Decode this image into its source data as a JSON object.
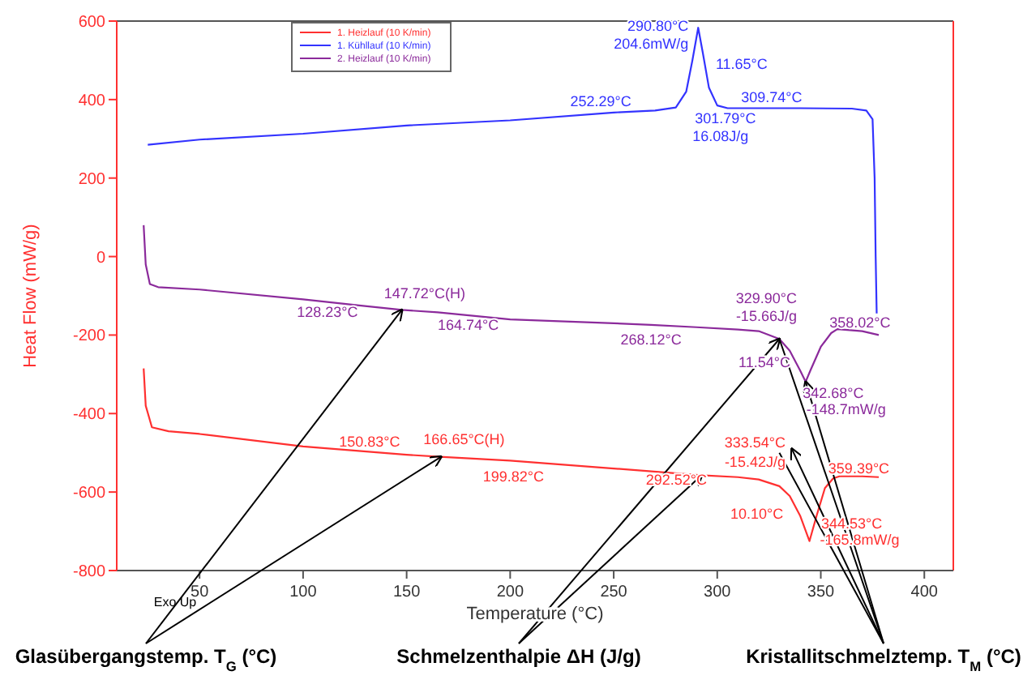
{
  "chart_data": {
    "type": "line",
    "xlabel": "Temperature (°C)",
    "ylabel": "Heat Flow (mW/g)",
    "xlim": [
      10,
      414
    ],
    "ylim": [
      -800,
      600
    ],
    "xticks": [
      50,
      100,
      150,
      200,
      250,
      300,
      350,
      400
    ],
    "yticks": [
      -800,
      -600,
      -400,
      -200,
      0,
      200,
      400,
      600
    ],
    "grid": false,
    "legend": "top",
    "line_style": "solid",
    "series": [
      {
        "name": "1. Heizlauf (10 K/min)",
        "color": "#ff3030",
        "x": [
          23,
          24,
          27,
          35,
          50,
          100,
          150,
          166,
          200,
          250,
          292,
          310,
          320,
          330,
          335,
          340,
          344.53,
          348,
          352,
          356,
          359,
          370,
          378
        ],
        "values": [
          -285,
          -380,
          -435,
          -445,
          -452,
          -484,
          -505,
          -510,
          -520,
          -540,
          -557,
          -562,
          -568,
          -585,
          -610,
          -660,
          -725,
          -660,
          -590,
          -565,
          -560,
          -560,
          -562
        ]
      },
      {
        "name": "1. Kühllauf (10 K/min)",
        "color": "#3333ff",
        "x": [
          25,
          50,
          100,
          150,
          200,
          250,
          270,
          280,
          285,
          288,
          290.8,
          293,
          296,
          300,
          305,
          310,
          340,
          365,
          372,
          375,
          376,
          376.5,
          377
        ],
        "values": [
          285,
          298,
          313,
          334,
          347,
          367,
          372,
          380,
          420,
          500,
          583,
          520,
          430,
          385,
          378,
          378,
          378,
          377,
          372,
          350,
          200,
          0,
          -145
        ]
      },
      {
        "name": "2. Heizlauf (10 K/min)",
        "color": "#8b2a9b",
        "x": [
          23,
          24,
          26,
          30,
          50,
          100,
          128,
          147.72,
          165,
          200,
          250,
          268,
          290,
          310,
          320,
          330,
          335,
          340,
          342.68,
          345,
          350,
          355,
          358,
          370,
          378
        ],
        "values": [
          80,
          -20,
          -70,
          -78,
          -84,
          -109,
          -125,
          -136,
          -142,
          -160,
          -170,
          -174,
          -180,
          -186,
          -190,
          -210,
          -240,
          -290,
          -319,
          -290,
          -230,
          -195,
          -185,
          -190,
          -200
        ]
      }
    ],
    "annotations": [
      {
        "text": "290.80°C",
        "x": 290.8,
        "y": 583
      },
      {
        "text": "204.6mW/g",
        "x": 290.8,
        "y": 583
      },
      {
        "text": "11.65°C",
        "x": 293,
        "y": 520
      },
      {
        "text": "252.29°C",
        "x": 250,
        "y": 367
      },
      {
        "text": "309.74°C",
        "x": 310,
        "y": 378
      },
      {
        "text": "301.79°C",
        "x": 300,
        "y": 385
      },
      {
        "text": "16.08J/g",
        "x": 300,
        "y": 385
      },
      {
        "text": "147.72°C(H)",
        "x": 147.72,
        "y": -136
      },
      {
        "text": "128.23°C",
        "x": 128,
        "y": -125
      },
      {
        "text": "164.74°C",
        "x": 165,
        "y": -142
      },
      {
        "text": "268.12°C",
        "x": 268,
        "y": -174
      },
      {
        "text": "329.90°C",
        "x": 330,
        "y": -210
      },
      {
        "text": "-15.66J/g",
        "x": 330,
        "y": -210
      },
      {
        "text": "358.02°C",
        "x": 358,
        "y": -185
      },
      {
        "text": "11.54°C",
        "x": 340,
        "y": -290
      },
      {
        "text": "342.68°C",
        "x": 342.68,
        "y": -319
      },
      {
        "text": "-148.7mW/g",
        "x": 342.68,
        "y": -319
      },
      {
        "text": "166.65°C(H)",
        "x": 166,
        "y": -510
      },
      {
        "text": "150.83°C",
        "x": 150,
        "y": -505
      },
      {
        "text": "199.82°C",
        "x": 200,
        "y": -520
      },
      {
        "text": "333.54°C",
        "x": 330,
        "y": -585
      },
      {
        "text": "-15.42J/g",
        "x": 330,
        "y": -585
      },
      {
        "text": "359.39°C",
        "x": 359,
        "y": -560
      },
      {
        "text": "292.52°C",
        "x": 292,
        "y": -557
      },
      {
        "text": "10.10°C",
        "x": 335,
        "y": -610
      },
      {
        "text": "344.53°C",
        "x": 344.53,
        "y": -725
      },
      {
        "text": "-165.8mW/g",
        "x": 344.53,
        "y": -725
      },
      "Exo Up",
      {
        "text": "Glasübergangstemp.  T$_{G}$ (°C)",
        "x": 147.72,
        "y": -136
      },
      {
        "text": "Schmelzenthalpie ΔH (J/g)",
        "x": 330,
        "y": -210
      },
      {
        "text": "Kristallitschmelztemp. T$_{M}$ (°C)",
        "x": 342.68,
        "y": -319
      }
    ]
  }
}
